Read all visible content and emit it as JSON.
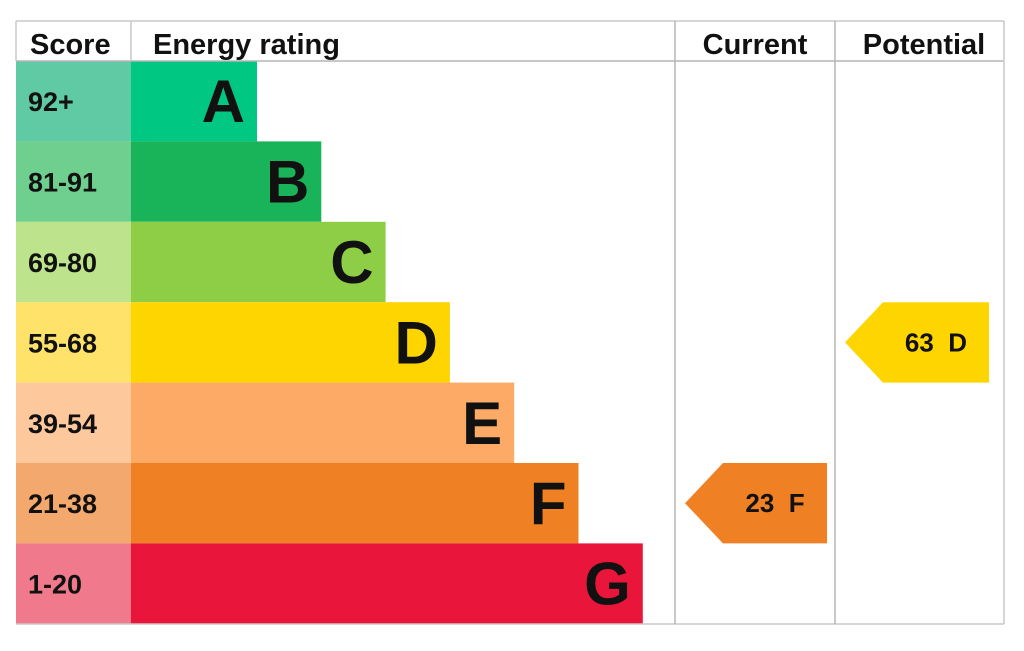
{
  "headers": {
    "score": "Score",
    "energy_rating": "Energy rating",
    "current": "Current",
    "potential": "Potential"
  },
  "chart_data": {
    "type": "bar",
    "title": "",
    "bands": [
      {
        "letter": "A",
        "range": "92+",
        "min": 92,
        "max": 100,
        "color": "#00c781",
        "score_bg": "#5fcaa3"
      },
      {
        "letter": "B",
        "range": "81-91",
        "min": 81,
        "max": 91,
        "color": "#19b459",
        "score_bg": "#6ecf8e"
      },
      {
        "letter": "C",
        "range": "69-80",
        "min": 69,
        "max": 80,
        "color": "#8dce46",
        "score_bg": "#bde38c"
      },
      {
        "letter": "D",
        "range": "55-68",
        "min": 55,
        "max": 68,
        "color": "#ffd500",
        "score_bg": "#ffe26a"
      },
      {
        "letter": "E",
        "range": "39-54",
        "min": 39,
        "max": 54,
        "color": "#fcaa65",
        "score_bg": "#fdc89c"
      },
      {
        "letter": "F",
        "range": "21-38",
        "min": 21,
        "max": 38,
        "color": "#ef8023",
        "score_bg": "#f3a86d"
      },
      {
        "letter": "G",
        "range": "1-20",
        "min": 1,
        "max": 20,
        "color": "#e9153b",
        "score_bg": "#f07a8c"
      }
    ],
    "current": {
      "score": 23,
      "band": "F",
      "label": "23  F",
      "color": "#ef8023"
    },
    "potential": {
      "score": 63,
      "band": "D",
      "label": "63  D",
      "color": "#ffd500"
    }
  }
}
